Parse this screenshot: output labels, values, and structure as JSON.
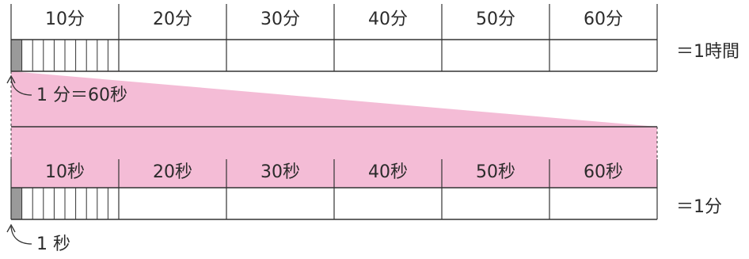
{
  "colors": {
    "pink": "#f4bcd6",
    "line": "#333333",
    "grey_cell": "#9a9a9a"
  },
  "hour_scale": {
    "headers": [
      "10分",
      "20分",
      "30分",
      "40分",
      "50分",
      "60分"
    ],
    "equals_label": "＝1時間",
    "pointer_label": "1 分＝60秒"
  },
  "minute_scale": {
    "headers": [
      "10秒",
      "20秒",
      "30秒",
      "40秒",
      "50秒",
      "60秒"
    ],
    "equals_label": "＝1分",
    "pointer_label": "1 秒"
  }
}
